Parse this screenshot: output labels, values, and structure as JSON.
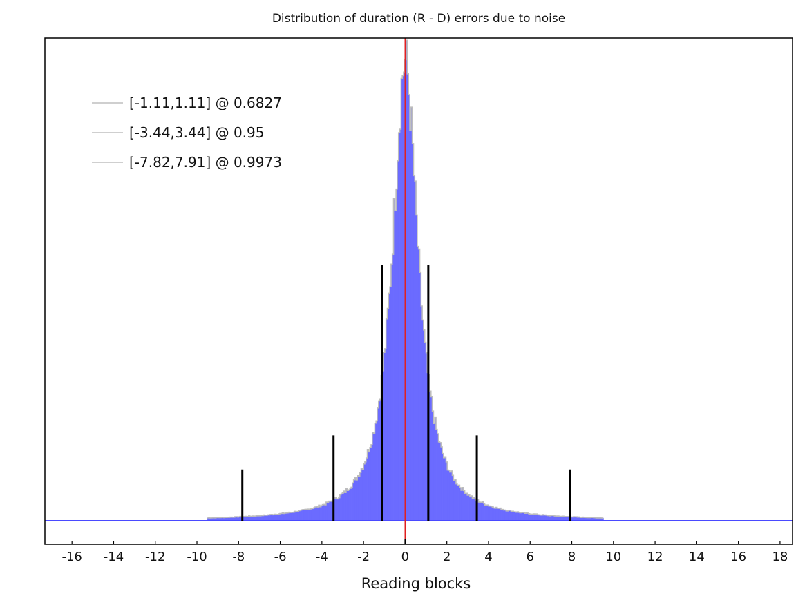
{
  "chart_data": {
    "type": "bar",
    "title": "Distribution of duration (R - D) errors due to noise",
    "xlabel": "Reading blocks",
    "ylabel": "",
    "xlim": [
      -17.3,
      18.6
    ],
    "ylim": [
      0,
      1
    ],
    "y_ticks_shown": false,
    "grid": false,
    "x_ticks": [
      -16,
      -14,
      -12,
      -10,
      -8,
      -6,
      -4,
      -2,
      0,
      2,
      4,
      6,
      8,
      10,
      12,
      14,
      16,
      18
    ],
    "x_tick_labels": [
      "-16",
      "-14",
      "-12",
      "-10",
      "-8",
      "-6",
      "-4",
      "-2",
      "0",
      "2",
      "4",
      "6",
      "8",
      "10",
      "12",
      "14",
      "16",
      "18"
    ],
    "histogram": {
      "color": "#6b6bff",
      "outline_color": "#bdbdbd",
      "center": 0,
      "peak_relative_height": 1.0,
      "half_width_scale": 0.75
    },
    "reference_line": {
      "x": 0,
      "color": "#e02020"
    },
    "intervals": [
      {
        "label": "[-1.11,1.11] @ 0.6827",
        "low": -1.11,
        "high": 1.11,
        "marker_relative_height": 0.75
      },
      {
        "label": "[-3.44,3.44] @ 0.95",
        "low": -3.44,
        "high": 3.44,
        "marker_relative_height": 0.25
      },
      {
        "label": "[-7.82,7.91] @ 0.9973",
        "low": -7.82,
        "high": 7.91,
        "marker_relative_height": 0.15
      }
    ],
    "legend_position": "top-left",
    "legend_swatch_color": "#cfcfcf",
    "interval_marker_color": "#000000"
  }
}
